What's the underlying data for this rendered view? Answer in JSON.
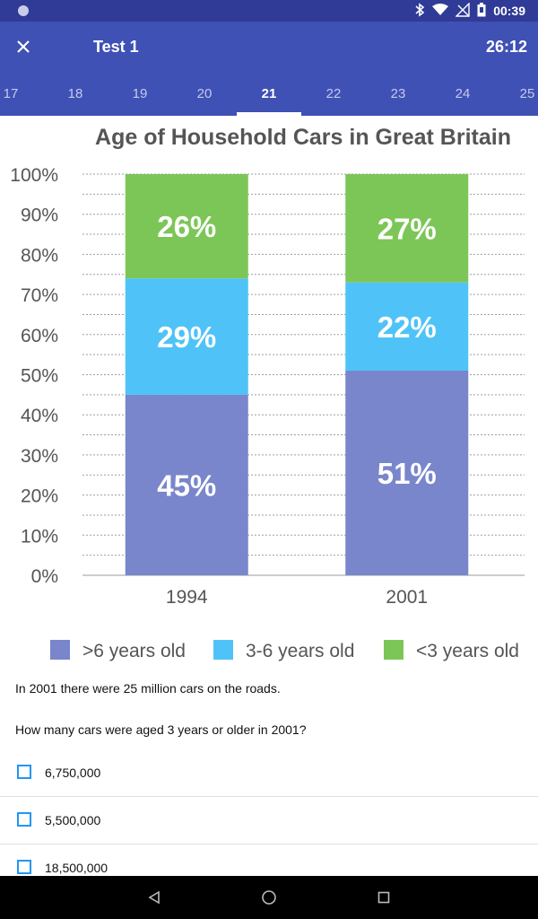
{
  "status_bar": {
    "time": "00:39",
    "icons": [
      "bluetooth-icon",
      "wifi-icon",
      "no-signal-icon",
      "battery-icon"
    ]
  },
  "app_bar": {
    "title": "Test 1",
    "timer": "26:12",
    "close_icon": "close-icon"
  },
  "tabs": [
    "17",
    "18",
    "19",
    "20",
    "21",
    "22",
    "23",
    "24",
    "25"
  ],
  "active_tab": "21",
  "chart_data": {
    "type": "bar",
    "stacked": true,
    "title": "Age of Household Cars in Great Britain",
    "categories": [
      "1994",
      "2001"
    ],
    "series": [
      {
        "name": ">6 years old",
        "values": [
          45,
          51
        ],
        "labels": [
          "45%",
          "51%"
        ],
        "color": "#7986cb"
      },
      {
        "name": "3-6 years old",
        "values": [
          29,
          22
        ],
        "labels": [
          "29%",
          "22%"
        ],
        "color": "#4fc3f7"
      },
      {
        "name": "<3 years old",
        "values": [
          26,
          27
        ],
        "labels": [
          "26%",
          "27%"
        ],
        "color": "#7cc657"
      }
    ],
    "y_ticks": [
      "0%",
      "10%",
      "20%",
      "30%",
      "40%",
      "50%",
      "60%",
      "70%",
      "80%",
      "90%",
      "100%"
    ],
    "ylim": [
      0,
      100
    ],
    "grid": true,
    "legend_position": "bottom"
  },
  "question": {
    "context": "In 2001 there were 25 million cars on the roads.",
    "prompt": "How many cars were aged 3 years or older in 2001?"
  },
  "options": [
    "6,750,000",
    "5,500,000",
    "18,500,000"
  ],
  "colors": {
    "status_bar": "#2f3b96",
    "app_bar": "#3f51b5",
    "checkbox": "#2196f3"
  },
  "nav_bar": [
    "back-icon",
    "home-icon",
    "recents-icon"
  ]
}
